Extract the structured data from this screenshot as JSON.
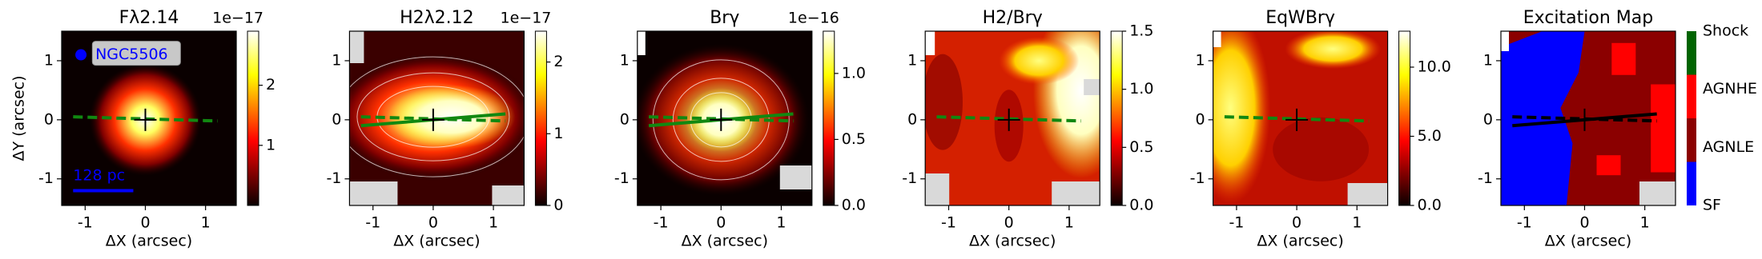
{
  "chart_data": [
    {
      "type": "heatmap",
      "title": "Fλ2.14",
      "xlabel": "ΔX (arcsec)",
      "ylabel": "ΔY (arcsec)",
      "xlim": [
        -1.39,
        1.51
      ],
      "ylim": [
        -1.45,
        1.5
      ],
      "xticks": [
        -1,
        0,
        1
      ],
      "yticks": [
        -1,
        0,
        1
      ],
      "colormap": "hot",
      "clim": [
        0,
        2.9
      ],
      "cticks": [
        1,
        2
      ],
      "cscale": "1e−17",
      "annotations": [
        "NGC5506",
        "128 pc"
      ],
      "annotation_color": "#0000ff"
    },
    {
      "type": "heatmap",
      "title": "H2λ2.12",
      "xlabel": "ΔX (arcsec)",
      "xlim": [
        -1.39,
        1.51
      ],
      "ylim": [
        -1.45,
        1.5
      ],
      "xticks": [
        -1,
        0,
        1
      ],
      "yticks": [
        -1,
        0,
        1
      ],
      "colormap": "hot",
      "clim": [
        0,
        2.43
      ],
      "cticks": [
        0,
        1,
        2
      ],
      "cscale": "1e−17"
    },
    {
      "type": "heatmap",
      "title": "Brγ",
      "xlabel": "ΔX (arcsec)",
      "xlim": [
        -1.39,
        1.51
      ],
      "ylim": [
        -1.45,
        1.5
      ],
      "xticks": [
        -1,
        0,
        1
      ],
      "yticks": [
        -1,
        0,
        1
      ],
      "colormap": "hot",
      "clim": [
        0,
        1.32
      ],
      "cticks": [
        {
          "value": 0,
          "label": "0.0"
        },
        0.5,
        {
          "value": 1,
          "label": "1.0"
        }
      ],
      "cscale": "1e−16"
    },
    {
      "type": "heatmap",
      "title": "H2/Brγ",
      "xlabel": "ΔX (arcsec)",
      "xlim": [
        -1.39,
        1.51
      ],
      "ylim": [
        -1.45,
        1.5
      ],
      "xticks": [
        -1,
        0,
        1
      ],
      "yticks": [
        -1,
        0,
        1
      ],
      "colormap": "hot",
      "clim": [
        0,
        1.5
      ],
      "cticks": [
        {
          "value": 0,
          "label": "0.0"
        },
        0.5,
        {
          "value": 1,
          "label": "1.0"
        },
        1.5
      ]
    },
    {
      "type": "heatmap",
      "title": "EqWBrγ",
      "xlabel": "ΔX (arcsec)",
      "xlim": [
        -1.39,
        1.51
      ],
      "ylim": [
        -1.45,
        1.5
      ],
      "xticks": [
        -1,
        0,
        1
      ],
      "yticks": [
        -1,
        0,
        1
      ],
      "colormap": "hot",
      "clim": [
        0,
        12.6
      ],
      "cticks": [
        {
          "value": 0,
          "label": "0.0"
        },
        {
          "value": 5,
          "label": "5.0"
        },
        {
          "value": 10,
          "label": "10.0"
        }
      ]
    },
    {
      "type": "category-map",
      "title": "Excitation Map",
      "xlabel": "ΔX (arcsec)",
      "xlim": [
        -1.39,
        1.51
      ],
      "ylim": [
        -1.45,
        1.5
      ],
      "xticks": [
        -1,
        0,
        1
      ],
      "yticks": [
        -1,
        0,
        1
      ],
      "categories": [
        "SF",
        "AGNLE",
        "AGNHE",
        "Shock"
      ],
      "colors": [
        "#0000ff",
        "#8b0000",
        "#ff0000",
        "#006400"
      ]
    }
  ]
}
